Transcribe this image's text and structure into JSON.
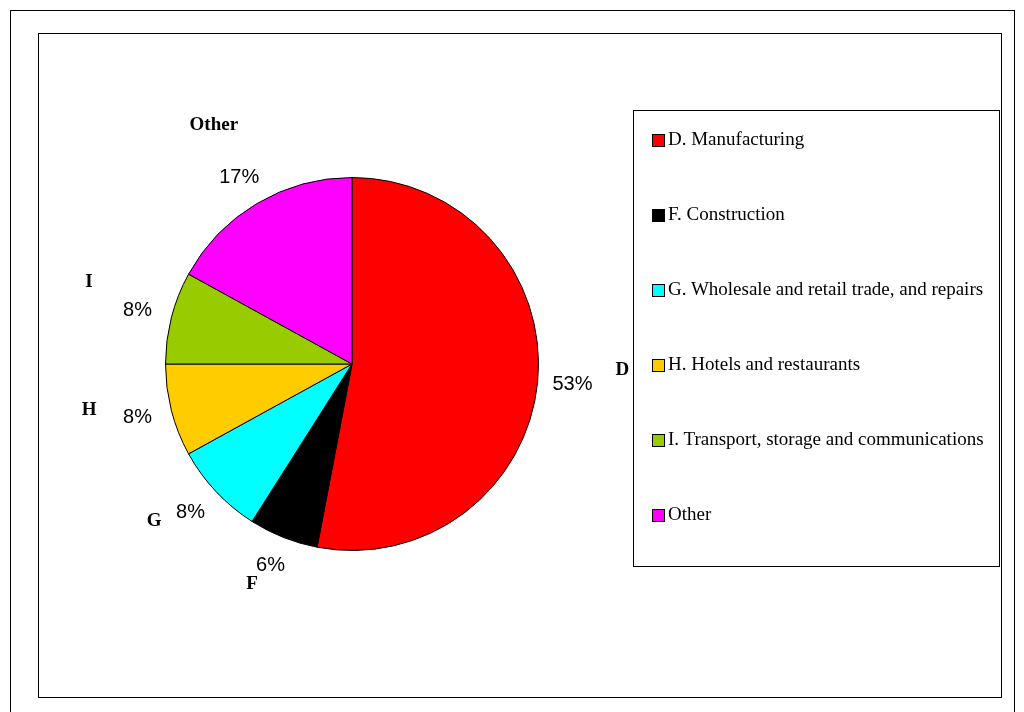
{
  "chart_data": {
    "type": "pie",
    "categories": [
      "D. Manufacturing",
      "F. Construction",
      "G. Wholesale and retail trade, and repairs",
      "H. Hotels and restaurants",
      "I. Transport, storage and communications",
      "Other"
    ],
    "values": [
      53,
      6,
      8,
      8,
      8,
      17
    ],
    "colors": [
      "#ff0000",
      "#000000",
      "#00ffff",
      "#ffcc00",
      "#99cc00",
      "#ff00ff"
    ],
    "value_labels": [
      "53%",
      "6%",
      "8%",
      "8%",
      "8%",
      "17%"
    ],
    "annotations": [
      {
        "text": "D",
        "x": "D. Manufacturing"
      },
      {
        "text": "F",
        "x": "F. Construction"
      },
      {
        "text": "G",
        "x": "G. Wholesale and retail trade, and repairs"
      },
      {
        "text": "H",
        "x": "H. Hotels and restaurants"
      },
      {
        "text": "I",
        "x": "I. Transport, storage and communications"
      },
      {
        "text": "Other",
        "x": "Other"
      }
    ],
    "legend": "right"
  }
}
